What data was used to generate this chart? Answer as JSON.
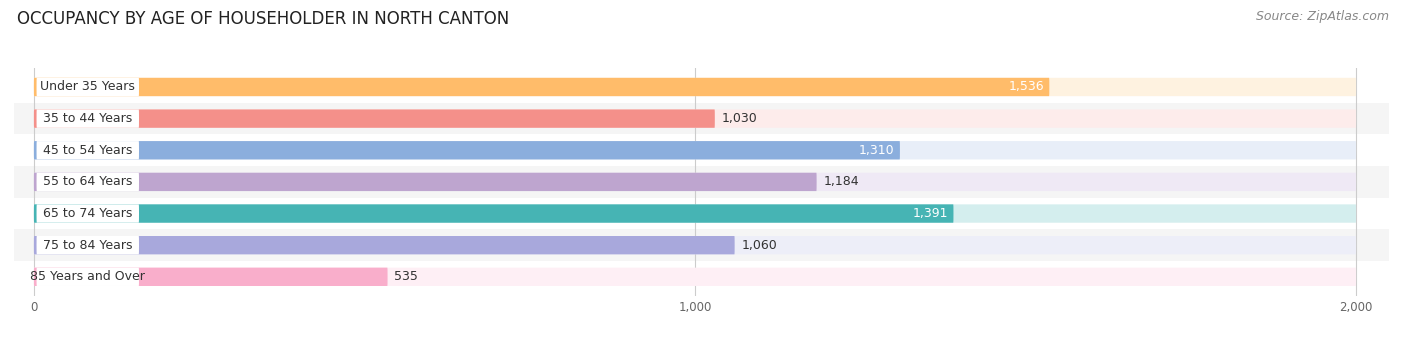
{
  "title": "OCCUPANCY BY AGE OF HOUSEHOLDER IN NORTH CANTON",
  "source": "Source: ZipAtlas.com",
  "categories": [
    "Under 35 Years",
    "35 to 44 Years",
    "45 to 54 Years",
    "55 to 64 Years",
    "65 to 74 Years",
    "75 to 84 Years",
    "85 Years and Over"
  ],
  "values": [
    1536,
    1030,
    1310,
    1184,
    1391,
    1060,
    535
  ],
  "bar_colors": [
    "#FFBC6A",
    "#F4908A",
    "#8BAEDD",
    "#BEA5CF",
    "#46B4B4",
    "#A8A8DC",
    "#F9AECB"
  ],
  "bar_bg_colors": [
    "#FEF2E0",
    "#FDECEB",
    "#E8EEF8",
    "#EFE9F5",
    "#D4EEEE",
    "#EDEEF8",
    "#FEEFF5"
  ],
  "row_bg_colors": [
    "#FFFFFF",
    "#F5F5F5",
    "#FFFFFF",
    "#F5F5F5",
    "#FFFFFF",
    "#F5F5F5",
    "#FFFFFF"
  ],
  "xlim_left": -30,
  "xlim_right": 2050,
  "xticks": [
    0,
    1000,
    2000
  ],
  "xticklabels": [
    "0",
    "1,000",
    "2,000"
  ],
  "title_fontsize": 12,
  "source_fontsize": 9,
  "label_fontsize": 9,
  "value_fontsize": 9,
  "background_color": "#FFFFFF",
  "value_colors_inside": [
    "#FFFFFF",
    "#000000",
    "#FFFFFF",
    "#000000",
    "#FFFFFF",
    "#000000",
    "#000000"
  ],
  "value_inside": [
    true,
    false,
    true,
    false,
    true,
    false,
    false
  ]
}
